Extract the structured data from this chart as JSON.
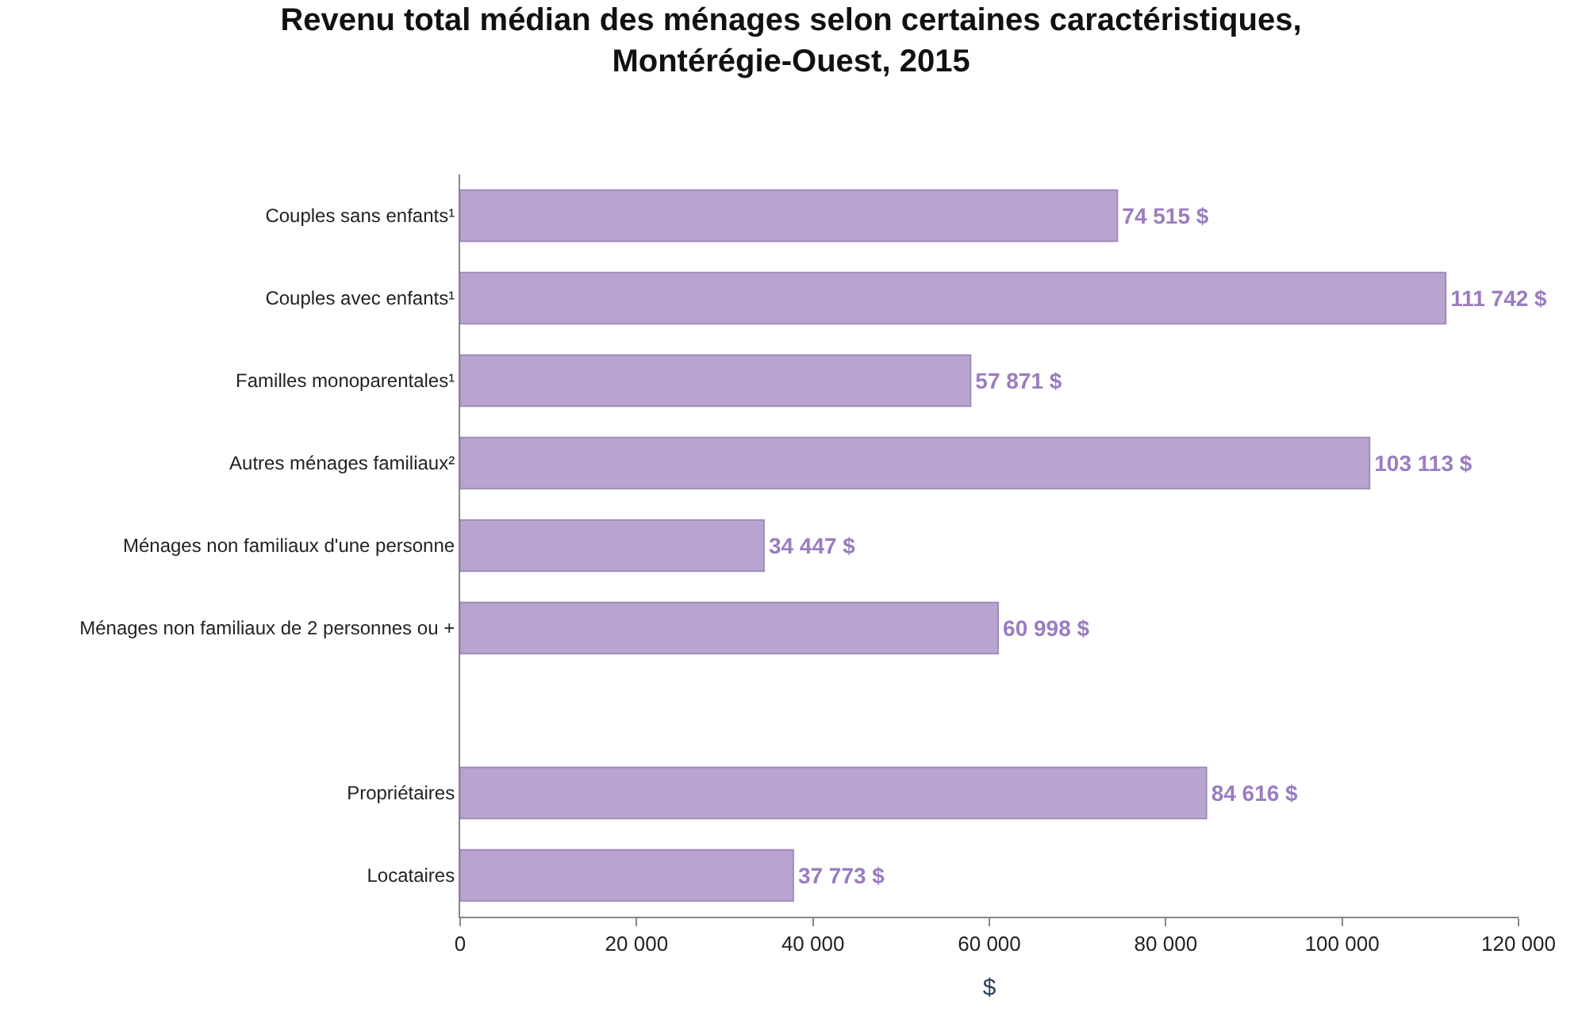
{
  "chart_data": {
    "type": "bar",
    "orientation": "horizontal",
    "title": "Revenu total médian des ménages selon certaines caractéristiques,\nMontérégie-Ouest, 2015",
    "xlabel": "$",
    "categories": [
      "Couples sans enfants¹",
      "Couples avec enfants¹",
      "Familles monoparentales¹",
      "Autres ménages familiaux²",
      "Ménages non familiaux d'une personne",
      "Ménages non familiaux de 2 personnes ou +",
      null,
      "Propriétaires",
      "Locataires"
    ],
    "values": [
      74515,
      111742,
      57871,
      103113,
      34447,
      60998,
      null,
      84616,
      37773
    ],
    "value_labels": [
      "74 515 $",
      "111 742 $",
      "57 871 $",
      "103 113 $",
      "34 447 $",
      "60 998 $",
      null,
      "84 616 $",
      "37 773 $"
    ],
    "color": "#b9a3cf",
    "xlim": [
      0,
      120000
    ],
    "xticks": [
      0,
      {
        "value": 20000,
        "label": "20 000"
      },
      {
        "value": 40000,
        "label": "40 000"
      },
      {
        "value": 60000,
        "label": "60 000"
      },
      {
        "value": 80000,
        "label": "80 000"
      },
      {
        "value": 100000,
        "label": "100 000"
      },
      {
        "value": 120000,
        "label": "120 000"
      }
    ],
    "legend": false
  }
}
